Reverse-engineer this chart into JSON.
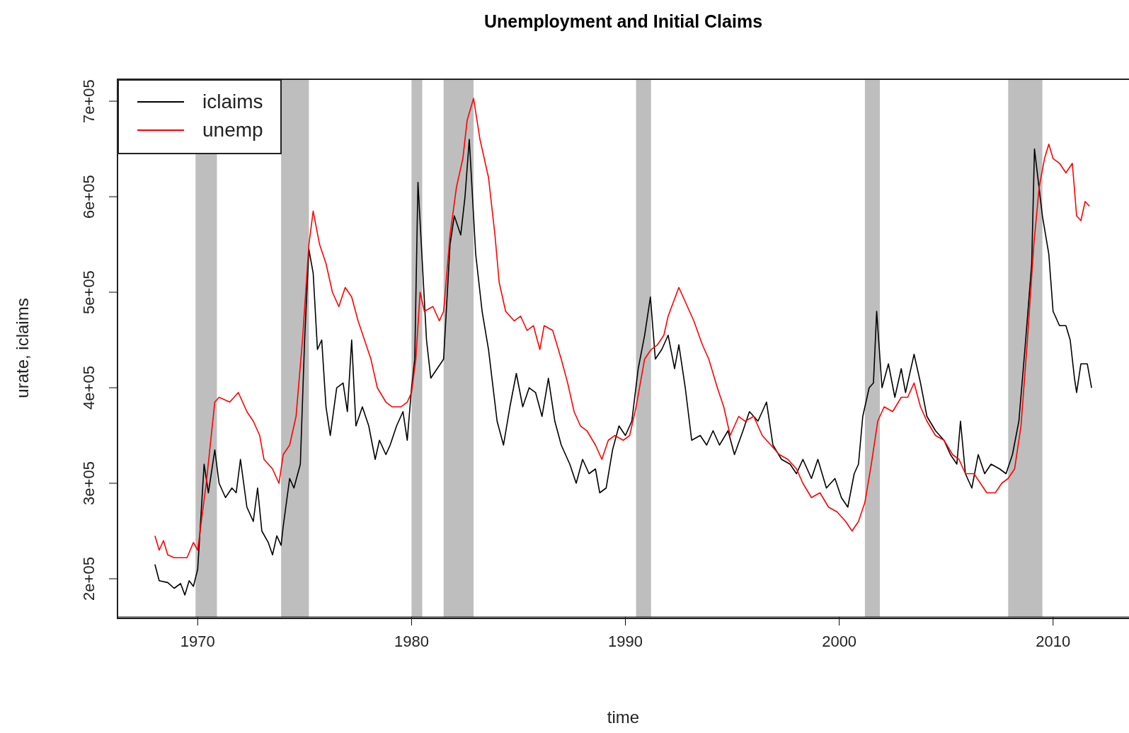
{
  "chart_data": {
    "type": "line",
    "title": "Unemployment and Initial Claims",
    "xlabel": "time",
    "ylabel": "urate, iclaims",
    "legend": "top left",
    "xlim": [
      1966.25,
      2013.55
    ],
    "xticks": [
      1970,
      1980,
      1990,
      2000,
      2010
    ],
    "ylim": [
      160000,
      723000
    ],
    "yticks": [
      {
        "value": 200000,
        "label": "2e+05"
      },
      {
        "value": 300000,
        "label": "3e+05"
      },
      {
        "value": 400000,
        "label": "4e+05"
      },
      {
        "value": 500000,
        "label": "5e+05"
      },
      {
        "value": 600000,
        "label": "6e+05"
      },
      {
        "value": 700000,
        "label": "7e+05"
      }
    ],
    "bands": [
      {
        "axis": "x",
        "from": 1969.9,
        "to": 1970.9,
        "color": "#bebebe"
      },
      {
        "axis": "x",
        "from": 1973.9,
        "to": 1975.2,
        "color": "#bebebe"
      },
      {
        "axis": "x",
        "from": 1980.0,
        "to": 1980.5,
        "color": "#bebebe"
      },
      {
        "axis": "x",
        "from": 1981.5,
        "to": 1982.9,
        "color": "#bebebe"
      },
      {
        "axis": "x",
        "from": 1990.5,
        "to": 1991.2,
        "color": "#bebebe"
      },
      {
        "axis": "x",
        "from": 2001.2,
        "to": 2001.9,
        "color": "#bebebe"
      },
      {
        "axis": "x",
        "from": 2007.9,
        "to": 2009.5,
        "color": "#bebebe"
      }
    ],
    "series": [
      {
        "name": "iclaims",
        "color": "#000000",
        "x": [
          1968.0,
          1968.2,
          1968.6,
          1968.9,
          1969.2,
          1969.4,
          1969.6,
          1969.8,
          1970.0,
          1970.3,
          1970.5,
          1970.8,
          1971.0,
          1971.3,
          1971.6,
          1971.8,
          1972.0,
          1972.3,
          1972.6,
          1972.8,
          1973.0,
          1973.3,
          1973.5,
          1973.7,
          1973.9,
          1974.0,
          1974.3,
          1974.5,
          1974.8,
          1975.0,
          1975.2,
          1975.4,
          1975.6,
          1975.8,
          1976.0,
          1976.2,
          1976.5,
          1976.8,
          1977.0,
          1977.2,
          1977.4,
          1977.7,
          1978.0,
          1978.3,
          1978.5,
          1978.8,
          1979.0,
          1979.3,
          1979.6,
          1979.8,
          1980.0,
          1980.15,
          1980.3,
          1980.7,
          1980.9,
          1981.2,
          1981.5,
          1981.8,
          1982.0,
          1982.3,
          1982.5,
          1982.7,
          1983.0,
          1983.3,
          1983.6,
          1984.0,
          1984.3,
          1984.6,
          1984.9,
          1985.2,
          1985.5,
          1985.8,
          1986.1,
          1986.4,
          1986.7,
          1987.0,
          1987.4,
          1987.7,
          1988.0,
          1988.3,
          1988.6,
          1988.8,
          1989.1,
          1989.4,
          1989.7,
          1990.0,
          1990.3,
          1990.6,
          1990.9,
          1991.17,
          1991.4,
          1991.7,
          1992.0,
          1992.3,
          1992.5,
          1992.8,
          1993.1,
          1993.5,
          1993.8,
          1994.1,
          1994.4,
          1994.8,
          1995.1,
          1995.5,
          1995.8,
          1996.2,
          1996.6,
          1996.9,
          1997.3,
          1997.7,
          1998.0,
          1998.3,
          1998.7,
          1999.0,
          1999.4,
          1999.8,
          2000.1,
          2000.4,
          2000.7,
          2000.9,
          2001.1,
          2001.4,
          2001.6,
          2001.75,
          2002.0,
          2002.3,
          2002.6,
          2002.9,
          2003.1,
          2003.5,
          2003.8,
          2004.1,
          2004.5,
          2004.9,
          2005.2,
          2005.5,
          2005.67,
          2005.9,
          2006.2,
          2006.5,
          2006.8,
          2007.1,
          2007.5,
          2007.8,
          2008.1,
          2008.4,
          2008.7,
          2009.0,
          2009.13,
          2009.5,
          2009.8,
          2010.0,
          2010.3,
          2010.6,
          2010.8,
          2011.0,
          2011.1,
          2011.3,
          2011.6,
          2011.8
        ],
        "values": [
          215000,
          198000,
          196000,
          190000,
          195000,
          183000,
          198000,
          192000,
          210000,
          320000,
          290000,
          335000,
          300000,
          285000,
          295000,
          290000,
          325000,
          275000,
          260000,
          295000,
          250000,
          238000,
          225000,
          245000,
          235000,
          255000,
          305000,
          295000,
          320000,
          450000,
          545000,
          520000,
          440000,
          450000,
          380000,
          350000,
          400000,
          405000,
          375000,
          450000,
          360000,
          380000,
          360000,
          325000,
          345000,
          330000,
          340000,
          360000,
          375000,
          345000,
          400000,
          430000,
          615000,
          450000,
          410000,
          420000,
          430000,
          550000,
          580000,
          560000,
          600000,
          660000,
          540000,
          480000,
          440000,
          365000,
          340000,
          380000,
          415000,
          380000,
          400000,
          395000,
          370000,
          410000,
          365000,
          340000,
          320000,
          300000,
          325000,
          310000,
          315000,
          290000,
          295000,
          335000,
          360000,
          350000,
          365000,
          420000,
          455000,
          495000,
          430000,
          440000,
          455000,
          420000,
          445000,
          400000,
          345000,
          350000,
          340000,
          355000,
          340000,
          355000,
          330000,
          355000,
          375000,
          365000,
          385000,
          340000,
          325000,
          320000,
          310000,
          325000,
          305000,
          325000,
          295000,
          305000,
          285000,
          275000,
          310000,
          320000,
          370000,
          400000,
          405000,
          480000,
          400000,
          425000,
          390000,
          420000,
          395000,
          435000,
          405000,
          370000,
          355000,
          345000,
          330000,
          320000,
          365000,
          310000,
          295000,
          330000,
          310000,
          320000,
          315000,
          310000,
          330000,
          365000,
          445000,
          530000,
          650000,
          580000,
          540000,
          480000,
          465000,
          465000,
          450000,
          410000,
          395000,
          425000,
          425000,
          400000
        ]
      },
      {
        "name": "unemp",
        "color": "#ff0000",
        "x": [
          1968.0,
          1968.2,
          1968.4,
          1968.6,
          1968.9,
          1969.5,
          1969.8,
          1970.0,
          1970.4,
          1970.8,
          1971.0,
          1971.5,
          1971.9,
          1972.3,
          1972.6,
          1972.9,
          1973.1,
          1973.5,
          1973.8,
          1974.0,
          1974.3,
          1974.6,
          1974.9,
          1975.2,
          1975.4,
          1975.7,
          1976.0,
          1976.3,
          1976.6,
          1976.9,
          1977.2,
          1977.5,
          1977.8,
          1978.1,
          1978.4,
          1978.8,
          1979.1,
          1979.5,
          1979.8,
          1980.0,
          1980.2,
          1980.4,
          1980.6,
          1981.0,
          1981.3,
          1981.5,
          1981.8,
          1982.1,
          1982.4,
          1982.6,
          1982.9,
          1983.2,
          1983.6,
          1983.9,
          1984.1,
          1984.4,
          1984.8,
          1985.1,
          1985.4,
          1985.7,
          1986.0,
          1986.2,
          1986.6,
          1987.0,
          1987.3,
          1987.6,
          1987.9,
          1988.2,
          1988.6,
          1988.9,
          1989.2,
          1989.5,
          1989.9,
          1990.2,
          1990.5,
          1990.9,
          1991.2,
          1991.5,
          1991.8,
          1992.0,
          1992.5,
          1992.8,
          1993.2,
          1993.6,
          1993.9,
          1994.3,
          1994.6,
          1994.9,
          1995.3,
          1995.6,
          1996.0,
          1996.4,
          1996.8,
          1997.2,
          1997.6,
          1998.0,
          1998.3,
          1998.7,
          1999.1,
          1999.5,
          1999.9,
          2000.3,
          2000.6,
          2000.9,
          2001.2,
          2001.5,
          2001.8,
          2002.1,
          2002.5,
          2002.9,
          2003.2,
          2003.5,
          2003.8,
          2004.1,
          2004.5,
          2004.9,
          2005.3,
          2005.6,
          2005.9,
          2006.3,
          2006.6,
          2006.9,
          2007.3,
          2007.6,
          2007.9,
          2008.2,
          2008.5,
          2008.8,
          2009.1,
          2009.35,
          2009.6,
          2009.8,
          2010.0,
          2010.3,
          2010.6,
          2010.9,
          2011.1,
          2011.3,
          2011.5,
          2011.7
        ],
        "values": [
          245000,
          230000,
          240000,
          225000,
          222000,
          222000,
          238000,
          230000,
          300000,
          385000,
          390000,
          385000,
          395000,
          375000,
          365000,
          350000,
          325000,
          315000,
          300000,
          330000,
          340000,
          370000,
          450000,
          550000,
          585000,
          550000,
          530000,
          500000,
          485000,
          505000,
          495000,
          470000,
          450000,
          430000,
          400000,
          385000,
          380000,
          380000,
          385000,
          395000,
          430000,
          500000,
          480000,
          485000,
          470000,
          480000,
          560000,
          610000,
          640000,
          680000,
          703000,
          660000,
          620000,
          560000,
          510000,
          480000,
          470000,
          475000,
          460000,
          465000,
          440000,
          465000,
          460000,
          430000,
          405000,
          375000,
          360000,
          355000,
          340000,
          325000,
          345000,
          350000,
          345000,
          350000,
          380000,
          430000,
          440000,
          445000,
          455000,
          475000,
          505000,
          490000,
          470000,
          445000,
          430000,
          400000,
          380000,
          350000,
          370000,
          365000,
          370000,
          350000,
          340000,
          330000,
          325000,
          315000,
          300000,
          285000,
          290000,
          275000,
          270000,
          260000,
          250000,
          260000,
          280000,
          320000,
          365000,
          380000,
          375000,
          390000,
          390000,
          405000,
          380000,
          365000,
          350000,
          345000,
          330000,
          325000,
          310000,
          310000,
          300000,
          290000,
          290000,
          300000,
          305000,
          315000,
          360000,
          450000,
          550000,
          610000,
          640000,
          655000,
          640000,
          635000,
          625000,
          635000,
          580000,
          575000,
          595000,
          590000
        ]
      }
    ]
  }
}
